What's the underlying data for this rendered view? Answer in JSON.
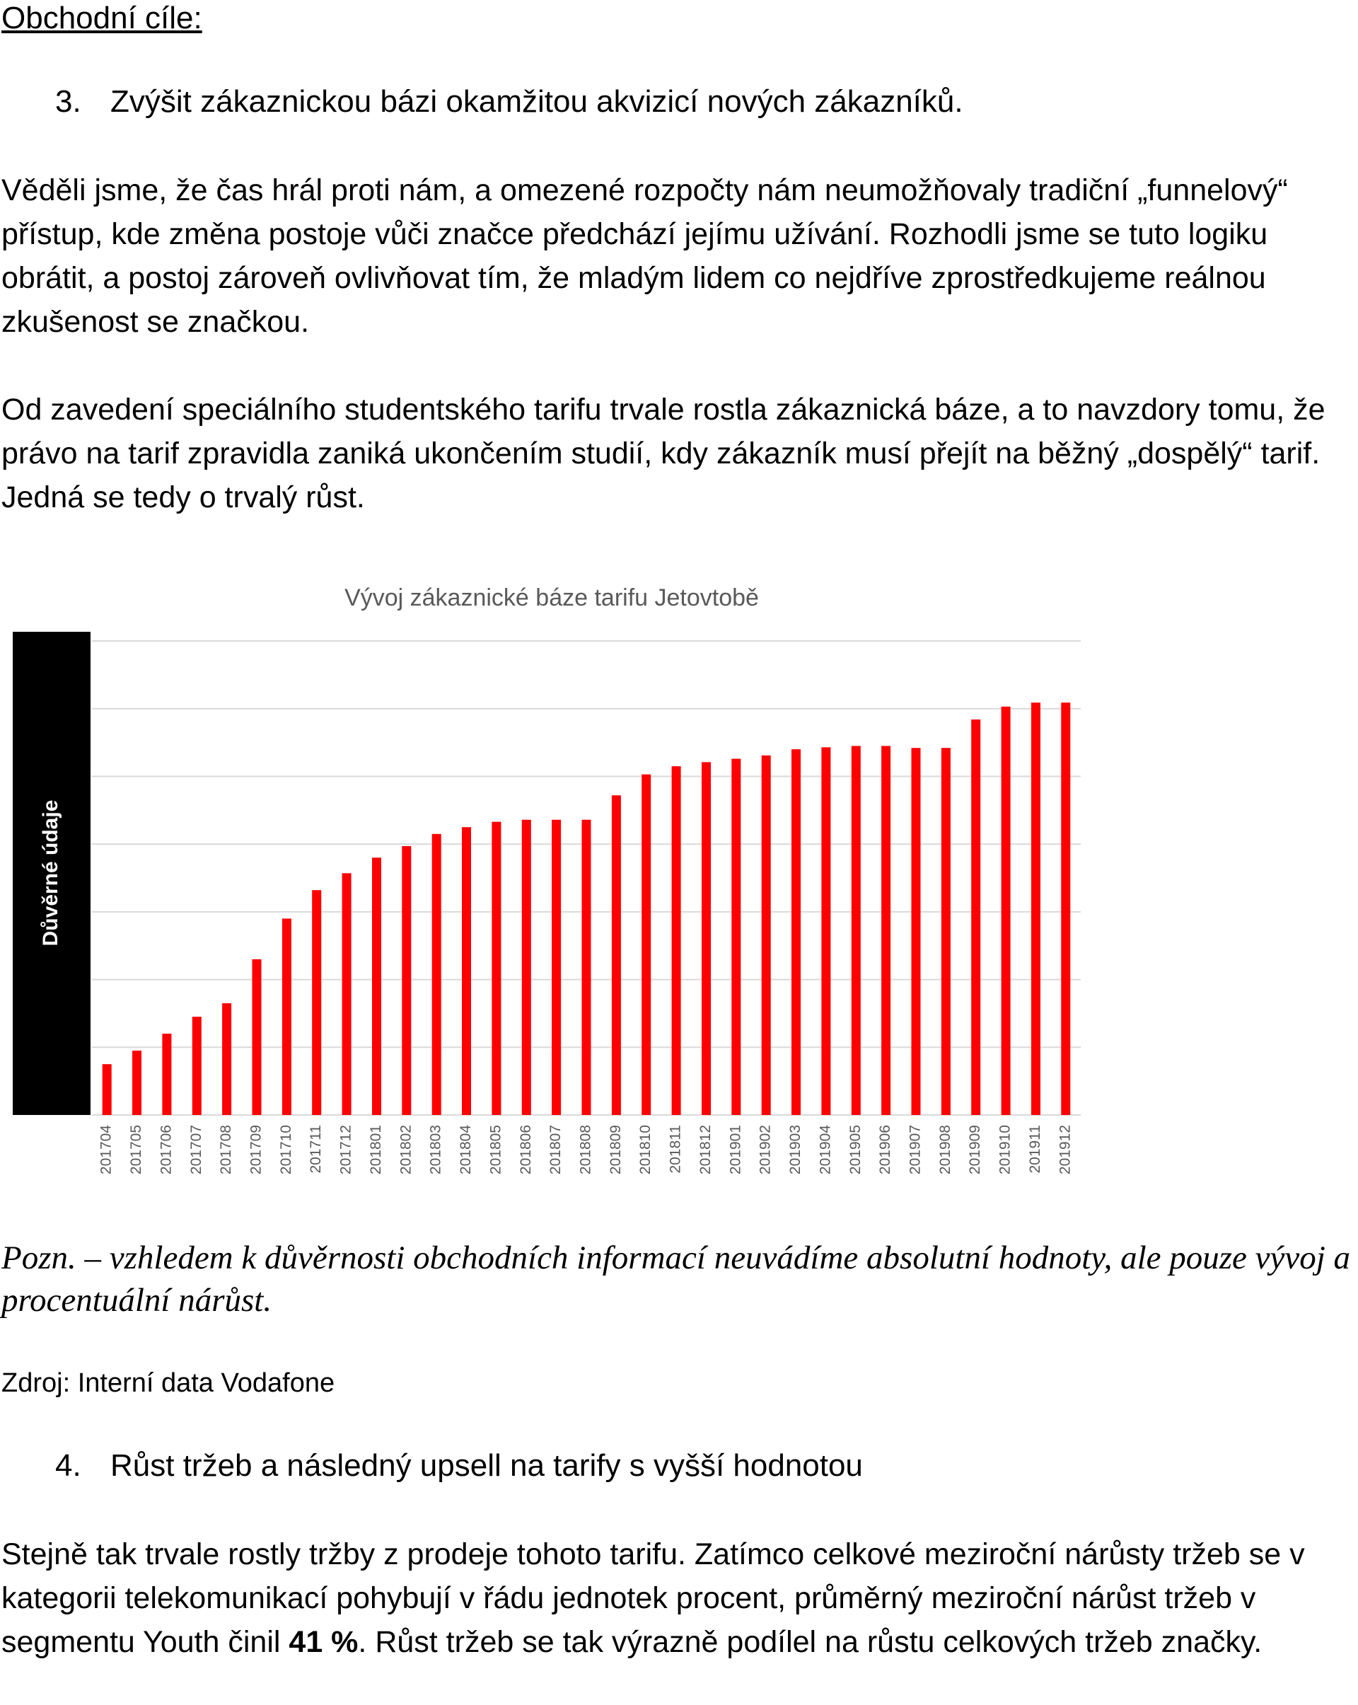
{
  "heading": "Obchodní cíle:",
  "goal3": {
    "number": "3.",
    "text": "Zvýšit zákaznickou bázi okamžitou akvizicí nových zákazníků."
  },
  "para1": "Věděli jsme, že čas hrál proti nám, a omezené rozpočty nám neumožňovaly tradiční „funnelový“ přístup, kde změna postoje vůči značce předchází jejímu užívání. Rozhodli jsme se tuto logiku obrátit, a postoj zároveň ovlivňovat tím, že mladým lidem co nejdříve zprostředkujeme reálnou zkušenost se značkou.",
  "para2": "Od zavedení speciálního studentského tarifu trvale rostla zákaznická báze, a to navzdory tomu, že právo na tarif zpravidla zaniká ukončením studií, kdy zákazník musí přejít na běžný „dospělý“ tarif.  Jedná se tedy o trvalý růst.",
  "chart_data": {
    "type": "bar",
    "title": "Vývoj zákaznické báze tarifu Jetovtobě",
    "confidential_label": "Důvěrné údaje",
    "categories": [
      "201704",
      "201705",
      "201706",
      "201707",
      "201708",
      "201709",
      "201710",
      "201711",
      "201712",
      "201801",
      "201802",
      "201803",
      "201804",
      "201805",
      "201806",
      "201807",
      "201808",
      "201809",
      "201810",
      "201811",
      "201812",
      "201901",
      "201902",
      "201903",
      "201904",
      "201905",
      "201906",
      "201907",
      "201908",
      "201909",
      "201910",
      "201911",
      "201912"
    ],
    "values": [
      0.75,
      0.95,
      1.2,
      1.45,
      1.65,
      2.3,
      2.9,
      3.32,
      3.57,
      3.8,
      3.97,
      4.15,
      4.25,
      4.33,
      4.36,
      4.36,
      4.36,
      4.72,
      5.03,
      5.15,
      5.21,
      5.26,
      5.31,
      5.4,
      5.43,
      5.45,
      5.45,
      5.42,
      5.42,
      5.84,
      6.03,
      6.09,
      6.09
    ],
    "ylim": [
      0,
      7
    ],
    "gridlines": [
      1,
      2,
      3,
      4,
      5,
      6,
      7
    ],
    "bar_color": "#ff0000",
    "grid": true
  },
  "note": "Pozn. – vzhledem k důvěrnosti obchodních informací neuvádíme absolutní hodnoty, ale pouze vývoj a procentuální nárůst.",
  "source": "Zdroj: Interní data Vodafone",
  "goal4": {
    "number": "4.",
    "text": "Růst tržeb a následný upsell na tarify s vyšší hodnotou"
  },
  "para3": {
    "before": "Stejně tak trvale rostly tržby z prodeje tohoto tarifu. Zatímco celkové meziroční nárůsty tržeb se v kategorii telekomunikací pohybují v řádu jednotek procent, průměrný meziroční nárůst tržeb v segmentu Youth činil ",
    "bold": "41 %",
    "after": ". Růst tržeb se tak výrazně podílel na růstu celkových tržeb značky."
  }
}
